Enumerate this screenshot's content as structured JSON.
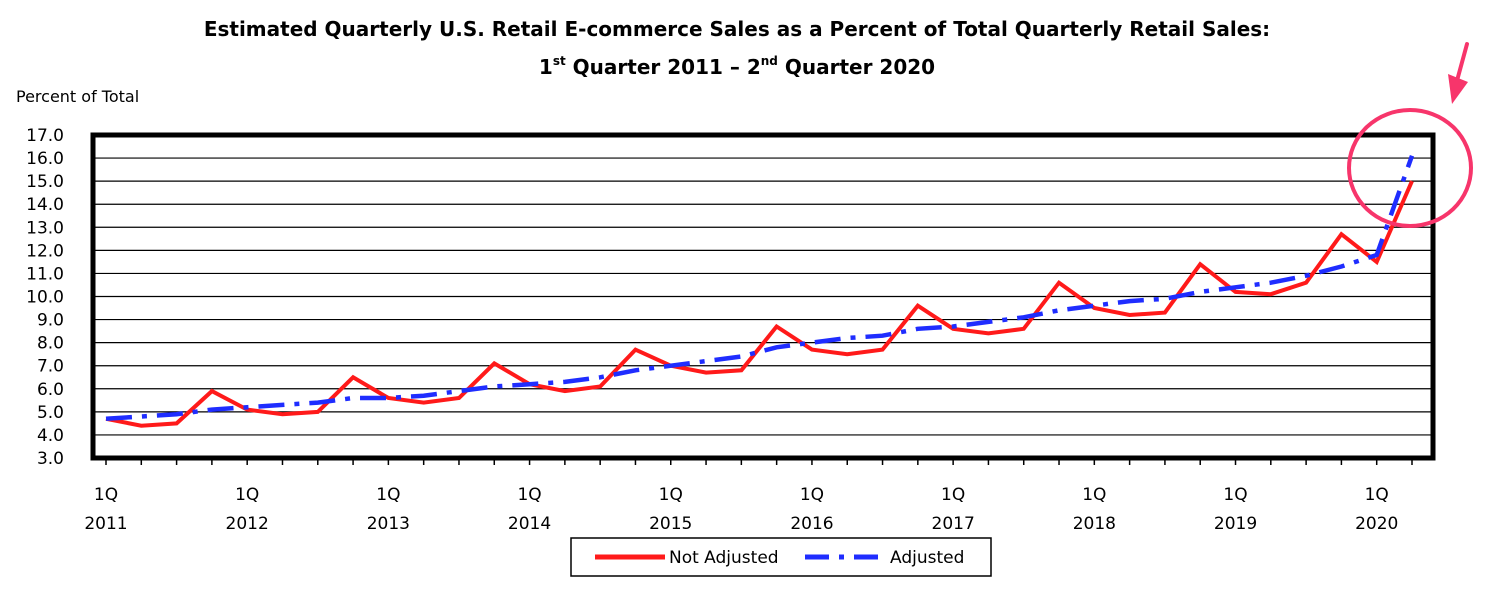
{
  "chart_data": {
    "type": "line",
    "title_line1": "Estimated Quarterly U.S. Retail E-commerce Sales as a Percent of Total Quarterly Retail Sales:",
    "title_line2": {
      "a": "1",
      "a_sup": "st",
      "b": " Quarter 2011 – 2",
      "b_sup": "nd",
      "c": " Quarter 2020"
    },
    "ylabel": "Percent of Total",
    "ylim": [
      3.0,
      17.0
    ],
    "yticks": [
      "3.0",
      "4.0",
      "5.0",
      "6.0",
      "7.0",
      "8.0",
      "9.0",
      "10.0",
      "11.0",
      "12.0",
      "13.0",
      "14.0",
      "15.0",
      "16.0",
      "17.0"
    ],
    "grid": true,
    "xtick_labels": [
      {
        "q": "1Q",
        "year": "2011",
        "index": 0
      },
      {
        "q": "1Q",
        "year": "2012",
        "index": 4
      },
      {
        "q": "1Q",
        "year": "2013",
        "index": 8
      },
      {
        "q": "1Q",
        "year": "2014",
        "index": 12
      },
      {
        "q": "1Q",
        "year": "2015",
        "index": 16
      },
      {
        "q": "1Q",
        "year": "2016",
        "index": 20
      },
      {
        "q": "1Q",
        "year": "2017",
        "index": 24
      },
      {
        "q": "1Q",
        "year": "2018",
        "index": 28
      },
      {
        "q": "1Q",
        "year": "2019",
        "index": 32
      },
      {
        "q": "1Q",
        "year": "2020",
        "index": 36
      }
    ],
    "series": [
      {
        "name": "Not Adjusted",
        "color": "#ff1a1a",
        "style": "solid",
        "values": [
          4.7,
          4.4,
          4.5,
          5.9,
          5.1,
          4.9,
          5.0,
          6.5,
          5.6,
          5.4,
          5.6,
          7.1,
          6.2,
          5.9,
          6.1,
          7.7,
          7.0,
          6.7,
          6.8,
          8.7,
          7.7,
          7.5,
          7.7,
          9.6,
          8.6,
          8.4,
          8.6,
          10.6,
          9.5,
          9.2,
          9.3,
          11.4,
          10.2,
          10.1,
          10.6,
          12.7,
          11.5,
          15.0
        ]
      },
      {
        "name": "Adjusted",
        "color": "#1f2dff",
        "style": "dashed",
        "values": [
          4.7,
          4.8,
          4.9,
          5.1,
          5.2,
          5.3,
          5.4,
          5.6,
          5.6,
          5.7,
          5.9,
          6.1,
          6.2,
          6.3,
          6.5,
          6.8,
          7.0,
          7.2,
          7.4,
          7.8,
          8.0,
          8.2,
          8.3,
          8.6,
          8.7,
          8.9,
          9.1,
          9.4,
          9.6,
          9.8,
          9.9,
          10.2,
          10.4,
          10.6,
          10.9,
          11.3,
          11.8,
          16.1
        ]
      }
    ],
    "legend": {
      "position": "bottom-center",
      "entries": [
        "Not Adjusted",
        "Adjusted"
      ]
    },
    "annotation": {
      "type": "circle-and-arrow",
      "target_index": 37,
      "color": "#f7356b"
    }
  }
}
